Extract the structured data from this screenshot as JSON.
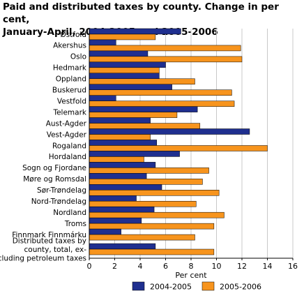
{
  "title_line1": "Paid and distributed taxes by county. Change in per cent,",
  "title_line2": "January-April, 2004-2005 and 2005-2006",
  "chart_data": {
    "type": "bar",
    "orientation": "horizontal",
    "categories": [
      [
        "Østfold"
      ],
      [
        "Akershus"
      ],
      [
        "Oslo"
      ],
      [
        "Hedmark"
      ],
      [
        "Oppland"
      ],
      [
        "Buskerud"
      ],
      [
        "Vestfold"
      ],
      [
        "Telemark"
      ],
      [
        "Aust-Agder"
      ],
      [
        "Vest-Agder"
      ],
      [
        "Rogaland"
      ],
      [
        "Hordaland"
      ],
      [
        "Sogn og Fjordane"
      ],
      [
        "Møre og Romsdal"
      ],
      [
        "Sør-Trøndelag"
      ],
      [
        "Nord-Trøndelag"
      ],
      [
        "Nordland"
      ],
      [
        "Troms"
      ],
      [
        "Finnmark Finnmárku"
      ],
      [
        "Distributed taxes by",
        "county, total, ex-",
        "cluding petroleum taxes"
      ]
    ],
    "series": [
      {
        "name": "2004-2005",
        "color": "#1f2f8f",
        "values": [
          7.2,
          2.1,
          4.6,
          6.0,
          5.5,
          6.5,
          2.1,
          8.5,
          4.8,
          12.6,
          5.3,
          7.1,
          5.2,
          4.5,
          5.7,
          3.7,
          5.1,
          4.1,
          2.5,
          5.2
        ]
      },
      {
        "name": "2005-2006",
        "color": "#f7941d",
        "values": [
          5.2,
          11.9,
          12.0,
          5.5,
          8.3,
          11.2,
          11.4,
          6.9,
          8.7,
          4.8,
          14.0,
          4.3,
          9.4,
          8.9,
          10.2,
          8.4,
          10.6,
          9.8,
          8.3,
          9.8
        ]
      }
    ],
    "xlabel": "Per cent",
    "xlim": [
      0,
      16
    ],
    "xticks": [
      0,
      2,
      4,
      6,
      8,
      10,
      12,
      14,
      16
    ],
    "grid": "vertical",
    "legend_position": "bottom"
  }
}
